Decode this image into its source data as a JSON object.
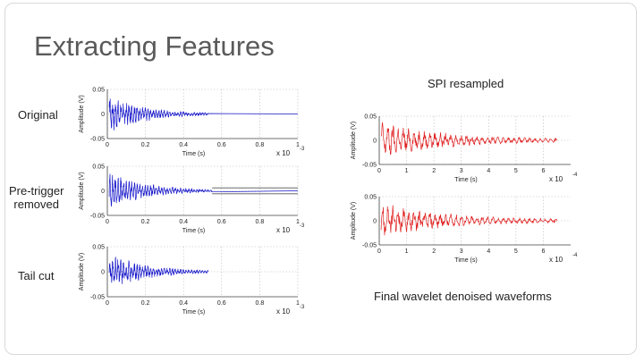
{
  "slide": {
    "title": "Extracting Features",
    "labels": {
      "original": "Original",
      "pretrigger_line1": "Pre-trigger",
      "pretrigger_line2": "removed",
      "tailcut": "Tail cut",
      "spi": "SPI resampled",
      "final": "Final wavelet denoised waveforms"
    }
  },
  "colors": {
    "left_signal": "#1a1acc",
    "right_signal": "#e02020",
    "axis": "#444444",
    "grid": "#bbbbbb"
  },
  "chart_data": [
    {
      "id": "original",
      "type": "line",
      "xlabel": "Time (s)",
      "ylabel": "Amplitude (V)",
      "x_multiplier": "x 10",
      "x_exponent": "-3",
      "x_ticks": [
        "0",
        "0.2",
        "0.4",
        "0.6",
        "0.8",
        "1"
      ],
      "y_ticks": [
        "-0.05",
        "0",
        "0.05"
      ],
      "xlim": [
        0,
        1.0
      ],
      "ylim": [
        -0.05,
        0.05
      ],
      "grid": true,
      "series": [
        {
          "color": "#1a1acc",
          "signal_end": 0.53,
          "decay": 0.2,
          "peak": 0.03,
          "freq": 70,
          "tail_noise": 0.0,
          "flat_to": 1.0
        }
      ]
    },
    {
      "id": "pretrigger",
      "type": "line",
      "xlabel": "Time (s)",
      "ylabel": "Amplitude (V)",
      "x_multiplier": "x 10",
      "x_exponent": "-3",
      "x_ticks": [
        "0",
        "0.2",
        "0.4",
        "0.6",
        "0.8",
        "1"
      ],
      "y_ticks": [
        "-0.05",
        "0",
        "0.05"
      ],
      "xlim": [
        0,
        1.0
      ],
      "ylim": [
        -0.05,
        0.05
      ],
      "grid": true,
      "series": [
        {
          "color": "#1a1acc",
          "signal_end": 0.55,
          "decay": 0.2,
          "peak": 0.03,
          "freq": 70,
          "tail_noise": 0.0,
          "flat_to": 1.0,
          "band": 0.006
        }
      ]
    },
    {
      "id": "tailcut",
      "type": "line",
      "xlabel": "Time (s)",
      "ylabel": "Amplitude (V)",
      "x_multiplier": "x 10",
      "x_exponent": "-3",
      "x_ticks": [
        "0",
        "0.2",
        "0.4",
        "0.6",
        "0.8",
        "1"
      ],
      "y_ticks": [
        "-0.05",
        "0",
        "0.05"
      ],
      "xlim": [
        0,
        1.0
      ],
      "ylim": [
        -0.05,
        0.05
      ],
      "grid": true,
      "series": [
        {
          "color": "#1a1acc",
          "signal_end": 0.53,
          "decay": 0.2,
          "peak": 0.03,
          "freq": 70,
          "tail_noise": 0.0,
          "flat_to": 0.53
        }
      ]
    },
    {
      "id": "spi",
      "type": "line",
      "xlabel": "Time (s)",
      "ylabel": "Amplitude (V)",
      "x_multiplier": "x 10",
      "x_exponent": "-4",
      "x_ticks": [
        "0",
        "1",
        "2",
        "3",
        "4",
        "5",
        "6"
      ],
      "y_ticks": [
        "-0.05",
        "0",
        "0.05"
      ],
      "xlim": [
        0,
        7
      ],
      "ylim": [
        -0.05,
        0.05
      ],
      "grid": true,
      "series": [
        {
          "color": "#e02020",
          "signal_end": 6.5,
          "decay": 2.2,
          "peak": 0.03,
          "freq": 5.2,
          "tail_noise": 0.002,
          "flat_to": 6.5
        }
      ]
    },
    {
      "id": "final",
      "type": "line",
      "xlabel": "Time (s)",
      "ylabel": "Amplitude (V)",
      "x_multiplier": "x 10",
      "x_exponent": "-4",
      "x_ticks": [
        "0",
        "1",
        "2",
        "3",
        "4",
        "5",
        "6"
      ],
      "y_ticks": [
        "-0.05",
        "0",
        "0.05"
      ],
      "xlim": [
        0,
        7
      ],
      "ylim": [
        -0.05,
        0.05
      ],
      "grid": true,
      "series": [
        {
          "color": "#e02020",
          "signal_end": 6.5,
          "decay": 2.2,
          "peak": 0.03,
          "freq": 5.2,
          "tail_noise": 0.002,
          "flat_to": 6.5
        }
      ]
    }
  ]
}
